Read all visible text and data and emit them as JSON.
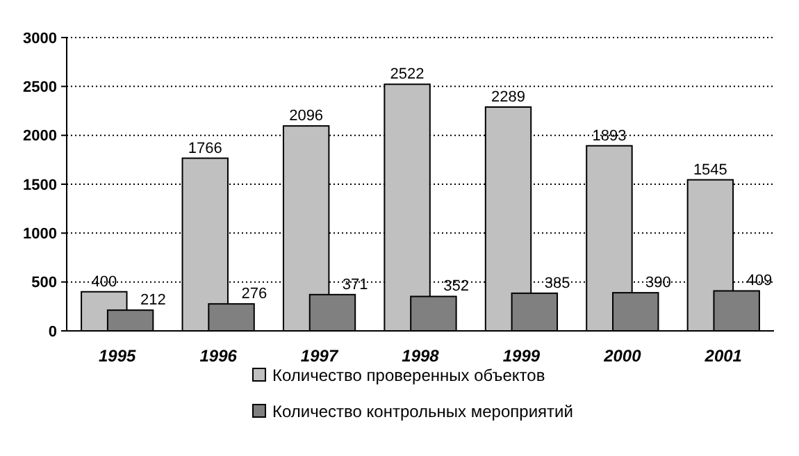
{
  "chart_data": {
    "type": "bar",
    "categories": [
      "1995",
      "1996",
      "1997",
      "1998",
      "1999",
      "2000",
      "2001"
    ],
    "series": [
      {
        "name": "Количество проверенных объектов",
        "color": "#c0c0c0",
        "values": [
          400,
          1766,
          2096,
          2522,
          2289,
          1893,
          1545
        ]
      },
      {
        "name": "Количество контрольных мероприятий",
        "color": "#808080",
        "values": [
          212,
          276,
          371,
          352,
          385,
          390,
          409
        ]
      }
    ],
    "ylim": [
      0,
      3000
    ],
    "yticks": [
      0,
      500,
      1000,
      1500,
      2000,
      2500,
      3000
    ],
    "grid": "y",
    "legend": "bottom",
    "data_labels": true
  }
}
